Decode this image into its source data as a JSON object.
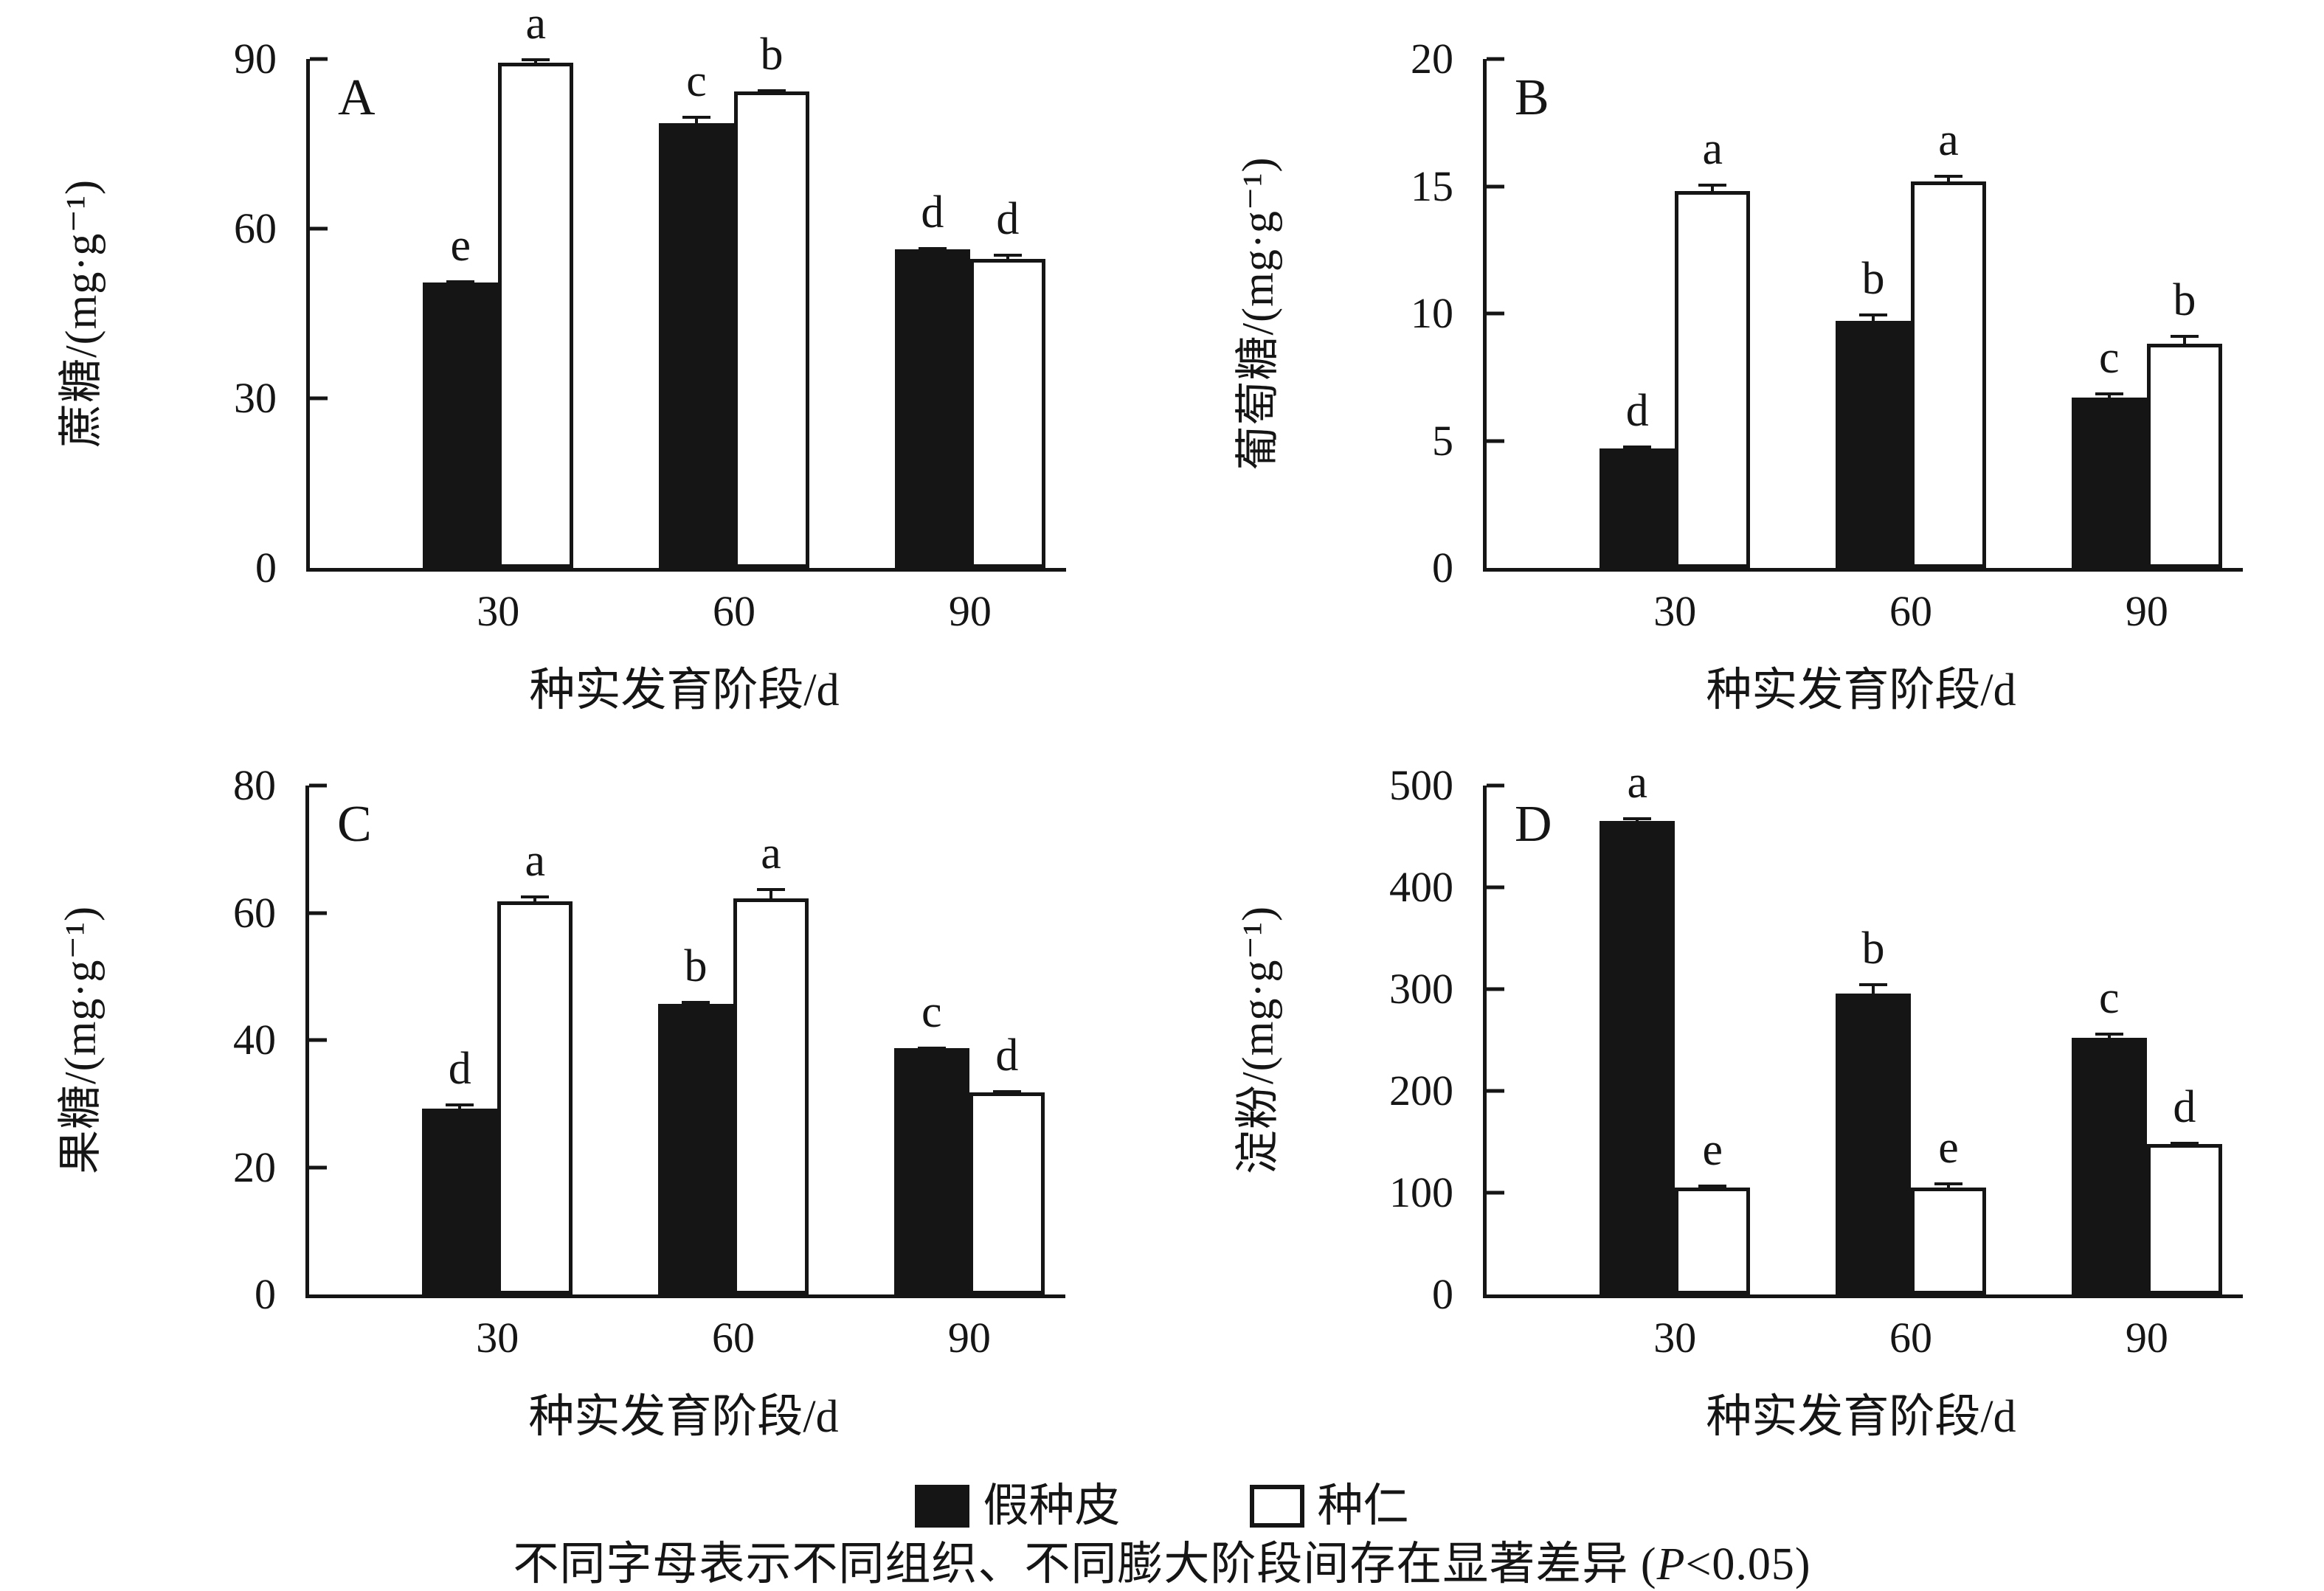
{
  "figure": {
    "legend": [
      {
        "label": "假种皮",
        "style": "filled",
        "color": "#151515"
      },
      {
        "label": "种仁",
        "style": "open",
        "color": "#ffffff"
      }
    ],
    "caption_prefix": "不同字母表示不同组织、不同膨大阶段间存在显著差异 (",
    "caption_p": "P",
    "caption_suffix": "<0.05)",
    "colors": {
      "bar_fill": "#151515",
      "bar_open": "#ffffff",
      "axis": "#151515"
    }
  },
  "chart_data": [
    {
      "type": "bar",
      "panel_label": "A",
      "ylabel": "蔗糖/(mg·g⁻¹)",
      "xlabel": "种实发育阶段/d",
      "categories": [
        "30",
        "60",
        "90"
      ],
      "ylim": [
        0,
        90
      ],
      "yticks": [
        0,
        30,
        60,
        90
      ],
      "grid": false,
      "series": [
        {
          "name": "假种皮",
          "style": "filled",
          "values": [
            50.5,
            78.7,
            56.3
          ],
          "errors": [
            0.4,
            1.2,
            0.4
          ],
          "sig_letters": [
            "e",
            "c",
            "d"
          ]
        },
        {
          "name": "种仁",
          "style": "open",
          "values": [
            89.4,
            84.2,
            54.6
          ],
          "errors": [
            0.7,
            0.4,
            1.0
          ],
          "sig_letters": [
            "a",
            "b",
            "d"
          ]
        }
      ]
    },
    {
      "type": "bar",
      "panel_label": "B",
      "ylabel": "葡萄糖/(mg·g⁻¹)",
      "xlabel": "种实发育阶段/d",
      "categories": [
        "30",
        "60",
        "90"
      ],
      "ylim": [
        0,
        20
      ],
      "yticks": [
        0,
        5,
        10,
        15,
        20
      ],
      "grid": false,
      "series": [
        {
          "name": "假种皮",
          "style": "filled",
          "values": [
            4.7,
            9.7,
            6.7
          ],
          "errors": [
            0.12,
            0.3,
            0.2
          ],
          "sig_letters": [
            "d",
            "b",
            "c"
          ]
        },
        {
          "name": "种仁",
          "style": "open",
          "values": [
            14.8,
            15.2,
            8.8
          ],
          "errors": [
            0.3,
            0.25,
            0.35
          ],
          "sig_letters": [
            "a",
            "a",
            "b"
          ]
        }
      ]
    },
    {
      "type": "bar",
      "panel_label": "C",
      "ylabel": "果糖/(mg·g⁻¹)",
      "xlabel": "种实发育阶段/d",
      "categories": [
        "30",
        "60",
        "90"
      ],
      "ylim": [
        0,
        80
      ],
      "yticks": [
        0,
        20,
        40,
        60,
        80
      ],
      "grid": false,
      "series": [
        {
          "name": "假种皮",
          "style": "filled",
          "values": [
            29.2,
            45.7,
            38.7
          ],
          "errors": [
            0.8,
            0.4,
            0.3
          ],
          "sig_letters": [
            "d",
            "b",
            "c"
          ]
        },
        {
          "name": "种仁",
          "style": "open",
          "values": [
            61.8,
            62.3,
            31.8
          ],
          "errors": [
            0.9,
            1.6,
            0.3
          ],
          "sig_letters": [
            "a",
            "a",
            "d"
          ]
        }
      ]
    },
    {
      "type": "bar",
      "panel_label": "D",
      "ylabel": "淀粉/(mg·g⁻¹)",
      "xlabel": "种实发育阶段/d",
      "categories": [
        "30",
        "60",
        "90"
      ],
      "ylim": [
        0,
        500
      ],
      "yticks": [
        0,
        100,
        200,
        300,
        400,
        500
      ],
      "grid": false,
      "series": [
        {
          "name": "假种皮",
          "style": "filled",
          "values": [
            465,
            296,
            252
          ],
          "errors": [
            4,
            10,
            5
          ],
          "sig_letters": [
            "a",
            "b",
            "c"
          ]
        },
        {
          "name": "种仁",
          "style": "open",
          "values": [
            105,
            105,
            148
          ],
          "errors": [
            3,
            5,
            2
          ],
          "sig_letters": [
            "e",
            "e",
            "d"
          ]
        }
      ]
    }
  ]
}
